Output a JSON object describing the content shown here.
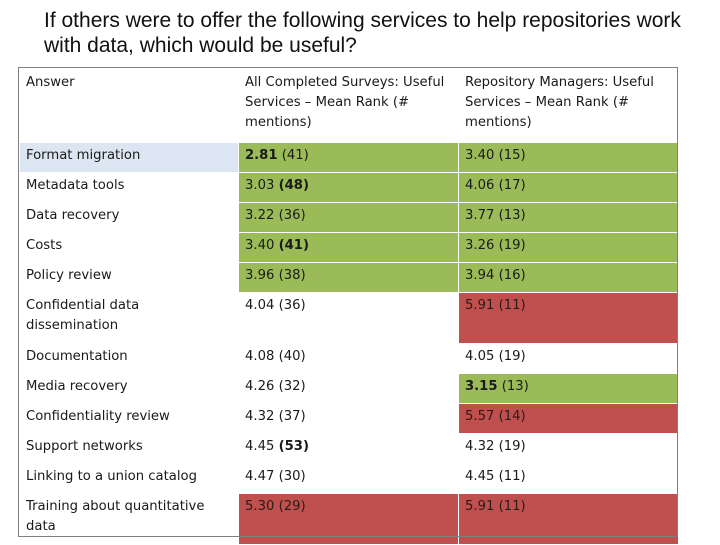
{
  "title": "If others were to offer the following services to help repositories work with data, which would be useful?",
  "colors": {
    "green": "#9bbb59",
    "red": "#c0504d",
    "blue_label": "#dce6f2"
  },
  "header": {
    "answer": "Answer",
    "all": "All Completed Surveys: Useful Services – Mean Rank (# mentions)",
    "managers": "Repository Managers: Useful Services – Mean Rank (# mentions)"
  },
  "rows": [
    {
      "answer": "Format migration",
      "all_rank": "2.81",
      "all_count": "(41)",
      "mgr_rank": "3.40",
      "mgr_count": "(15)"
    },
    {
      "answer": "Metadata tools",
      "all_rank": "3.03",
      "all_count": "(48)",
      "mgr_rank": "4.06",
      "mgr_count": "(17)"
    },
    {
      "answer": "Data recovery",
      "all_rank": "3.22",
      "all_count": "(36)",
      "mgr_rank": "3.77",
      "mgr_count": "(13)"
    },
    {
      "answer": "Costs",
      "all_rank": "3.40",
      "all_count": "(41)",
      "mgr_rank": "3.26",
      "mgr_count": "(19)"
    },
    {
      "answer": "Policy review",
      "all_rank": "3.96",
      "all_count": "(38)",
      "mgr_rank": "3.94",
      "mgr_count": "(16)"
    },
    {
      "answer": "Confidential data dissemination",
      "all_rank": "4.04",
      "all_count": "(36)",
      "mgr_rank": "5.91",
      "mgr_count": "(11)"
    },
    {
      "answer": "Documentation",
      "all_rank": "4.08",
      "all_count": "(40)",
      "mgr_rank": "4.05",
      "mgr_count": "(19)"
    },
    {
      "answer": "Media recovery",
      "all_rank": "4.26",
      "all_count": "(32)",
      "mgr_rank": "3.15",
      "mgr_count": "(13)"
    },
    {
      "answer": "Confidentiality review",
      "all_rank": "4.32",
      "all_count": "(37)",
      "mgr_rank": "5.57",
      "mgr_count": "(14)"
    },
    {
      "answer": "Support networks",
      "all_rank": "4.45",
      "all_count": "(53)",
      "mgr_rank": "4.32",
      "mgr_count": "(19)"
    },
    {
      "answer": "Linking to a union catalog",
      "all_rank": "4.47",
      "all_count": "(30)",
      "mgr_rank": "4.45",
      "mgr_count": "(11)"
    },
    {
      "answer": "Training about quantitative data",
      "all_rank": "5.30",
      "all_count": "(29)",
      "mgr_rank": "5.91",
      "mgr_count": "(11)"
    }
  ]
}
